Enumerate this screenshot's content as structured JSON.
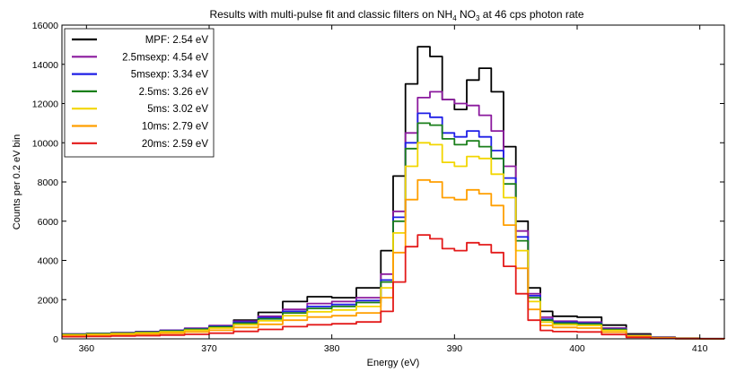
{
  "chart_data": {
    "type": "line",
    "title": "Results with multi-pulse fit and classic filters on NH",
    "title_sub1": "4",
    "title_mid": " NO",
    "title_sub2": "3",
    "title_end": "  at 46 cps photon rate",
    "xlabel": "Energy (eV)",
    "ylabel": "Counts per 0.2 eV bin",
    "xlim": [
      358,
      412
    ],
    "ylim": [
      0,
      16000
    ],
    "x_ticks": [
      "360",
      "370",
      "380",
      "390",
      "400",
      "410"
    ],
    "y_ticks": [
      "0",
      "2000",
      "4000",
      "6000",
      "8000",
      "10000",
      "12000",
      "14000",
      "16000"
    ],
    "grid": false,
    "legend_position": "top-left",
    "x": [
      358,
      360,
      362,
      364,
      366,
      368,
      370,
      372,
      374,
      376,
      378,
      380,
      382,
      384,
      385,
      386,
      387,
      388,
      389,
      390,
      391,
      392,
      393,
      394,
      395,
      396,
      397,
      398,
      400,
      402,
      404,
      406,
      408,
      410,
      412
    ],
    "series": [
      {
        "name": "MPF: 2.54 eV",
        "color": "#000000",
        "values": [
          200,
          220,
          250,
          300,
          380,
          480,
          650,
          950,
          1350,
          1900,
          2150,
          2100,
          2600,
          4500,
          8300,
          13000,
          14900,
          14400,
          12200,
          11700,
          13200,
          13800,
          12600,
          9800,
          6000,
          2600,
          1400,
          1150,
          1100,
          700,
          250,
          80,
          30,
          10,
          0
        ]
      },
      {
        "name": "2.5msexp: 4.54 eV",
        "color": "#8b1a9e",
        "values": [
          250,
          280,
          320,
          370,
          440,
          540,
          680,
          900,
          1150,
          1500,
          1800,
          1900,
          2100,
          3300,
          6500,
          10500,
          12300,
          12600,
          12200,
          12000,
          11900,
          11400,
          10600,
          8800,
          5500,
          2300,
          1100,
          900,
          850,
          550,
          200,
          60,
          20,
          5,
          0
        ]
      },
      {
        "name": "5msexp: 3.34 eV",
        "color": "#1f1fe6",
        "values": [
          240,
          270,
          300,
          350,
          420,
          510,
          640,
          850,
          1080,
          1400,
          1650,
          1750,
          1950,
          3000,
          6200,
          10000,
          11500,
          11300,
          10500,
          10300,
          10600,
          10300,
          9600,
          8200,
          5200,
          2200,
          1000,
          850,
          800,
          500,
          180,
          50,
          20,
          5,
          0
        ]
      },
      {
        "name": "2.5ms: 3.26 eV",
        "color": "#1a7f1a",
        "values": [
          230,
          260,
          290,
          340,
          400,
          490,
          610,
          800,
          1020,
          1320,
          1550,
          1650,
          1850,
          2900,
          6000,
          9700,
          11000,
          10900,
          10200,
          9900,
          10100,
          9800,
          9200,
          7900,
          5000,
          2100,
          950,
          800,
          760,
          480,
          170,
          50,
          20,
          5,
          0
        ]
      },
      {
        "name": "5ms: 3.02 eV",
        "color": "#f2d600",
        "values": [
          200,
          230,
          260,
          300,
          360,
          440,
          550,
          720,
          920,
          1180,
          1380,
          1470,
          1650,
          2600,
          5400,
          8800,
          10000,
          9900,
          9000,
          8800,
          9300,
          9200,
          8400,
          7200,
          4500,
          1900,
          850,
          720,
          680,
          430,
          150,
          45,
          15,
          5,
          0
        ]
      },
      {
        "name": "10ms: 2.79 eV",
        "color": "#ff9f00",
        "values": [
          160,
          180,
          210,
          240,
          290,
          350,
          440,
          580,
          740,
          950,
          1110,
          1180,
          1320,
          2100,
          4400,
          7100,
          8100,
          8000,
          7200,
          7100,
          7600,
          7400,
          6800,
          5800,
          3600,
          1500,
          680,
          580,
          550,
          340,
          120,
          35,
          12,
          4,
          0
        ]
      },
      {
        "name": "20ms: 2.59 eV",
        "color": "#e31a1a",
        "values": [
          110,
          120,
          140,
          160,
          190,
          230,
          290,
          380,
          480,
          620,
          720,
          770,
          860,
          1400,
          2900,
          4700,
          5300,
          5100,
          4600,
          4500,
          4900,
          4800,
          4400,
          3700,
          2300,
          950,
          430,
          370,
          350,
          220,
          80,
          25,
          8,
          3,
          0
        ]
      }
    ]
  }
}
